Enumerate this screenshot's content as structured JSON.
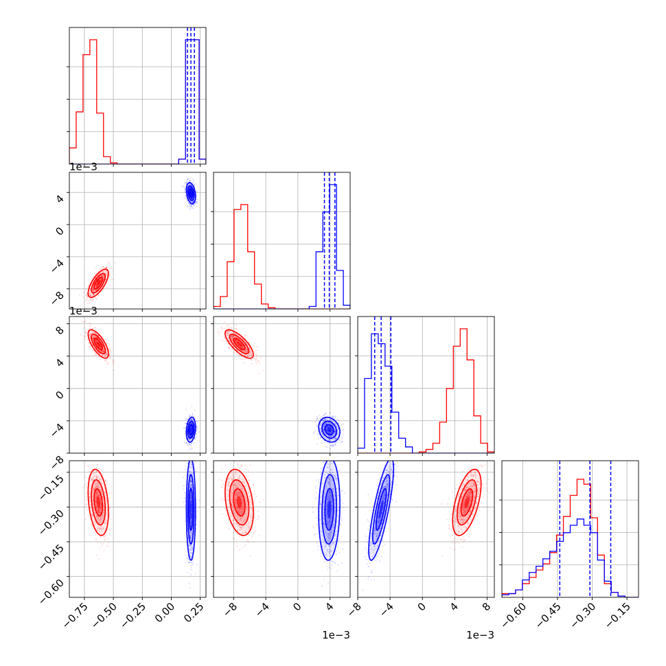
{
  "chart_data": {
    "type": "corner",
    "title": "",
    "grid": true,
    "colors": {
      "red": "#ff0000",
      "blue": "#0000ff"
    },
    "parameters": [
      {
        "range": [
          -0.88,
          0.3
        ],
        "ticks": [
          -0.75,
          -0.5,
          -0.25,
          0.0,
          0.25
        ],
        "tick_labels": [
          "−0.75",
          "−0.50",
          "−0.25",
          "0.00",
          "0.25"
        ],
        "offset_text": ""
      },
      {
        "range": [
          -0.0105,
          0.0065
        ],
        "ticks": [
          -0.008,
          -0.004,
          0.0,
          0.004
        ],
        "tick_labels": [
          "−8",
          "−4",
          "0",
          "4"
        ],
        "offset_text": "1e−3"
      },
      {
        "range": [
          -0.008,
          0.0089
        ],
        "ticks": [
          -0.008,
          -0.004,
          0.0,
          0.004,
          0.008
        ],
        "tick_labels": [
          "−8",
          "−4",
          "0",
          "4",
          "8"
        ],
        "offset_text": "1e−3"
      },
      {
        "range": [
          -0.69,
          -0.1
        ],
        "ticks": [
          -0.6,
          -0.45,
          -0.3,
          -0.15
        ],
        "tick_labels": [
          "−0.60",
          "−0.45",
          "−0.30",
          "−0.15"
        ],
        "offset_text": ""
      }
    ],
    "series": [
      {
        "color": "red",
        "means": [
          -0.63,
          -0.0073,
          0.0055,
          -0.28
        ],
        "sds": [
          0.04,
          0.0008,
          0.0008,
          0.065
        ],
        "corr": [
          [
            0,
            0.7,
            -0.7,
            -0.3
          ],
          [
            0.7,
            0,
            -0.75,
            -0.3
          ],
          [
            -0.7,
            -0.75,
            0,
            0.55
          ],
          [
            -0.3,
            -0.3,
            0.55,
            0
          ]
        ],
        "quantiles": []
      },
      {
        "color": "blue",
        "means": [
          0.17,
          0.0039,
          -0.0051,
          -0.31
        ],
        "sds": [
          0.018,
          0.0006,
          0.0007,
          0.1
        ],
        "corr": [
          [
            0,
            -0.3,
            0.2,
            0.0
          ],
          [
            -0.3,
            0,
            -0.2,
            0.1
          ],
          [
            0.2,
            -0.2,
            0,
            0.8
          ],
          [
            0.0,
            0.1,
            0.8,
            0
          ]
        ],
        "quantiles": [
          [
            0.14,
            0.17,
            0.2
          ],
          [
            0.0033,
            0.0039,
            0.0046
          ],
          [
            -0.0059,
            -0.0051,
            -0.0039
          ],
          [
            -0.44,
            -0.31,
            -0.22
          ]
        ]
      }
    ],
    "histograms": [
      {
        "bin_edges": [
          -0.88,
          -0.821,
          -0.762,
          -0.703,
          -0.644,
          -0.585,
          -0.526,
          -0.467,
          -0.408,
          -0.349,
          -0.29,
          -0.231,
          -0.172,
          -0.113,
          -0.054,
          0.005,
          0.064,
          0.123,
          0.182,
          0.241,
          0.3
        ],
        "red": [
          0.13,
          0.42,
          0.88,
          1.0,
          0.41,
          0.06,
          0.01,
          0,
          0,
          0,
          0,
          0,
          0,
          0,
          0,
          0,
          0.04,
          1.0,
          1.0,
          0.04
        ],
        "blue": [
          0,
          0,
          0,
          0,
          0,
          0,
          0,
          0,
          0,
          0,
          0,
          0,
          0,
          0,
          0,
          0,
          0.04,
          1.0,
          1.0,
          0.04
        ]
      },
      {
        "bin_edges": [
          -0.0105,
          -0.00965,
          -0.0088,
          -0.00795,
          -0.0071,
          -0.00625,
          -0.0054,
          -0.00455,
          -0.0037,
          -0.00285,
          -0.002,
          -0.00115,
          -0.0003,
          0.00055,
          0.0014,
          0.00225,
          0.0031,
          0.00395,
          0.0048,
          0.00565,
          0.0065
        ],
        "red": [
          0.02,
          0.1,
          0.38,
          0.8,
          0.84,
          0.46,
          0.2,
          0.04,
          0.01,
          0,
          0,
          0,
          0,
          0,
          0,
          0,
          0,
          0,
          0,
          0
        ],
        "blue": [
          0,
          0,
          0,
          0,
          0,
          0,
          0,
          0,
          0,
          0,
          0,
          0,
          0,
          0,
          0.02,
          0.46,
          0.78,
          1.0,
          0.31,
          0.03
        ]
      },
      {
        "bin_edges": [
          -0.008,
          -0.007155,
          -0.00631,
          -0.005465,
          -0.00462,
          -0.003775,
          -0.00293,
          -0.002085,
          -0.00124,
          -0.000395,
          0.00045,
          0.001295,
          0.00214,
          0.002985,
          0.00383,
          0.004675,
          0.00552,
          0.006365,
          0.00721,
          0.008055,
          0.0089
        ],
        "red": [
          0,
          0,
          0,
          0,
          0,
          0,
          0,
          0,
          0,
          0.01,
          0.03,
          0.08,
          0.25,
          0.52,
          0.86,
          1.0,
          0.75,
          0.3,
          0.08,
          0.01
        ],
        "blue": [
          0.04,
          0.6,
          0.96,
          0.88,
          0.7,
          0.33,
          0.12,
          0.05,
          0,
          0,
          0,
          0,
          0,
          0,
          0,
          0,
          0,
          0,
          0,
          0
        ]
      },
      {
        "bin_edges": [
          -0.69,
          -0.6605,
          -0.631,
          -0.6015,
          -0.572,
          -0.5425,
          -0.513,
          -0.4835,
          -0.454,
          -0.4245,
          -0.395,
          -0.3655,
          -0.336,
          -0.3065,
          -0.277,
          -0.2475,
          -0.218,
          -0.1885,
          -0.159,
          -0.1295,
          -0.1
        ],
        "red": [
          0.03,
          0.03,
          0.06,
          0.11,
          0.16,
          0.22,
          0.27,
          0.36,
          0.5,
          0.65,
          0.82,
          0.95,
          0.91,
          0.64,
          0.34,
          0.11,
          0.04,
          0.01,
          0,
          0
        ],
        "blue": [
          0.02,
          0.03,
          0.06,
          0.14,
          0.2,
          0.25,
          0.31,
          0.37,
          0.45,
          0.52,
          0.58,
          0.63,
          0.58,
          0.52,
          0.3,
          0.13,
          0.04,
          0.01,
          0,
          0
        ]
      }
    ]
  }
}
